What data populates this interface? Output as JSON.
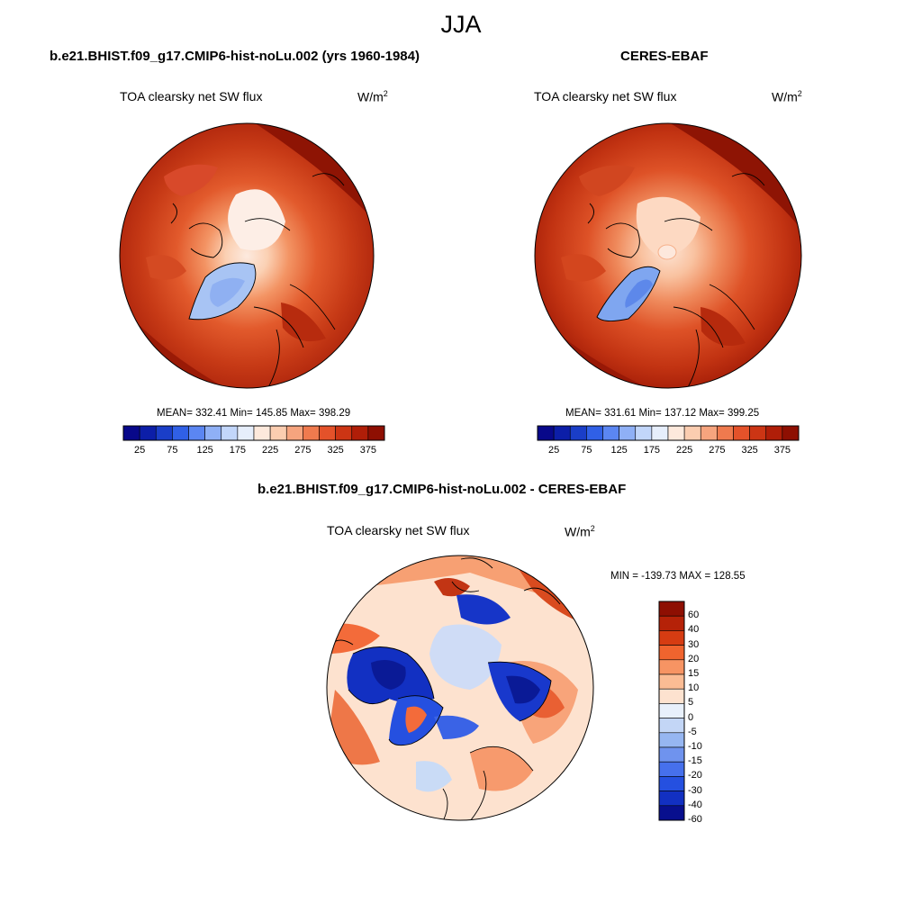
{
  "season": "JJA",
  "panels": [
    {
      "title": "b.e21.BHIST.f09_g17.CMIP6-hist-noLu.002 (yrs 1960-1984)",
      "subtitle": "TOA clearsky net SW flux",
      "units": "W/m",
      "units_sup": "2",
      "stats": "MEAN= 332.41  Min= 145.85  Max= 398.29"
    },
    {
      "title": "CERES-EBAF",
      "subtitle": "TOA clearsky net SW flux",
      "units": "W/m",
      "units_sup": "2",
      "stats": "MEAN= 331.61  Min= 137.12  Max= 399.25"
    }
  ],
  "diff": {
    "title": "b.e21.BHIST.f09_g17.CMIP6-hist-noLu.002 - CERES-EBAF",
    "subtitle": "TOA clearsky net SW flux",
    "units": "W/m",
    "units_sup": "2",
    "minmax": "MIN = -139.73 MAX = 128.55"
  },
  "colorbar_abs": {
    "colors": [
      "#08088a",
      "#0c1ea8",
      "#1a3ec8",
      "#3060e6",
      "#5b86f2",
      "#8fb0f6",
      "#c2d6fa",
      "#e6eefb",
      "#fde9dc",
      "#fbcdb0",
      "#f6a47e",
      "#ef7a4e",
      "#e4522a",
      "#cc3514",
      "#b01e08",
      "#8e0f02"
    ],
    "labels": [
      "25",
      "75",
      "125",
      "175",
      "225",
      "275",
      "325",
      "375"
    ]
  },
  "colorbar_diff": {
    "colors": [
      "#8e0f02",
      "#b52208",
      "#d63c12",
      "#f0642e",
      "#f79463",
      "#fbbc94",
      "#fde2cf",
      "#e8f0fb",
      "#c3d6f6",
      "#96b6f1",
      "#6f93ee",
      "#4670ec",
      "#2550e0",
      "#1230c2",
      "#080f8e"
    ],
    "labels": [
      "60",
      "40",
      "30",
      "20",
      "15",
      "10",
      "5",
      "0",
      "-5",
      "-10",
      "-15",
      "-20",
      "-30",
      "-40",
      "-60"
    ]
  }
}
